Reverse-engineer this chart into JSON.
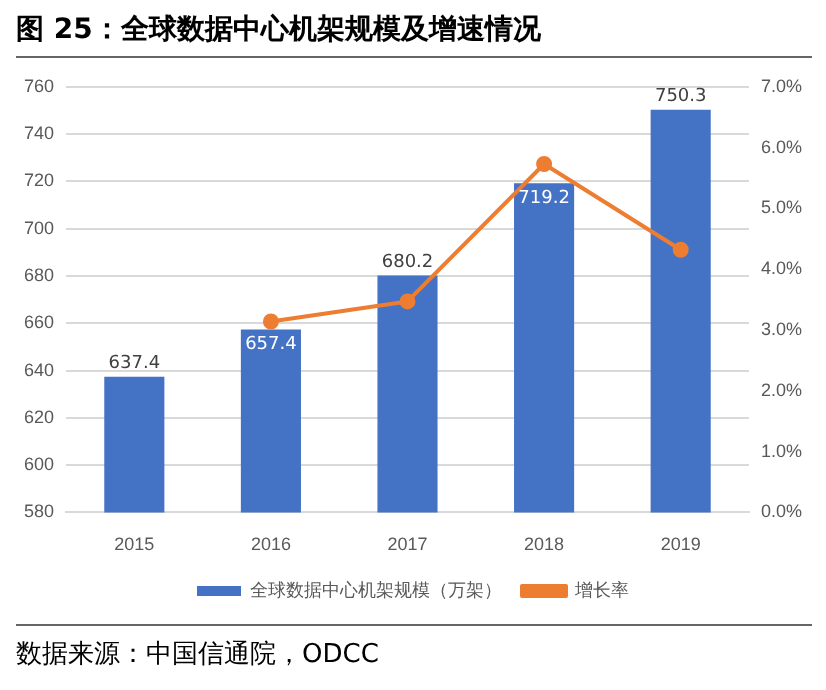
{
  "chart_data": {
    "type": "bar",
    "title": "图 25：全球数据中心机架规模及增速情况",
    "categories": [
      "2015",
      "2016",
      "2017",
      "2018",
      "2019"
    ],
    "series": [
      {
        "name": "全球数据中心机架规模（万架）",
        "color": "#4472c4",
        "values": [
          637.4,
          657.4,
          680.2,
          719.2,
          750.3
        ],
        "value_labels": [
          "637.4",
          "657.4",
          "680.2",
          "719.2",
          "750.3"
        ]
      },
      {
        "name": "增长率",
        "type": "line",
        "axis": "y2",
        "color": "#ed7d31",
        "values": [
          null,
          3.14,
          3.47,
          5.73,
          4.32
        ],
        "marker": "circle"
      }
    ],
    "ylim": [
      580,
      760
    ],
    "yticks": [
      580,
      600,
      620,
      640,
      660,
      680,
      700,
      720,
      740,
      760
    ],
    "y2lim": [
      0,
      7
    ],
    "y2ticks": [
      {
        "value": 0,
        "label": "0.0%"
      },
      {
        "value": 1,
        "label": "1.0%"
      },
      {
        "value": 2,
        "label": "2.0%"
      },
      {
        "value": 3,
        "label": "3.0%"
      },
      {
        "value": 4,
        "label": "4.0%"
      },
      {
        "value": 5,
        "label": "5.0%"
      },
      {
        "value": 6,
        "label": "6.0%"
      },
      {
        "value": 7,
        "label": "7.0%"
      }
    ],
    "grid": "y",
    "legend": "bottom",
    "annotations": [
      "数据来源：中国信通院，ODCC"
    ]
  }
}
